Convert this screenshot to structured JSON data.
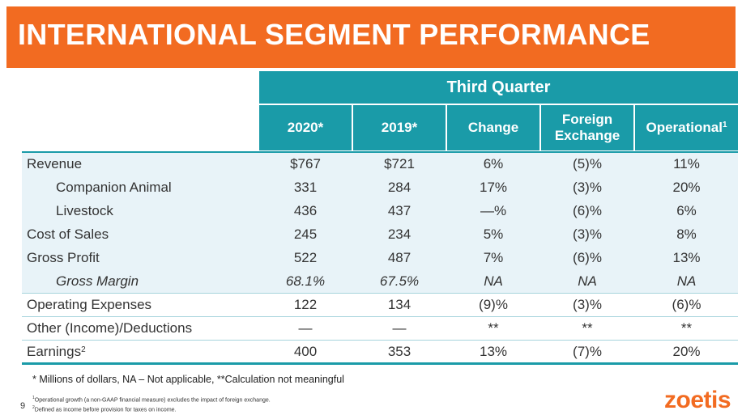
{
  "title": "INTERNATIONAL SEGMENT PERFORMANCE",
  "table": {
    "group_header": "Third Quarter",
    "columns": [
      {
        "label": "2020*",
        "sup": ""
      },
      {
        "label": "2019*",
        "sup": ""
      },
      {
        "label": "Change",
        "sup": ""
      },
      {
        "label": "Foreign Exchange",
        "sup": ""
      },
      {
        "label": "Operational",
        "sup": "1"
      }
    ],
    "rows": [
      {
        "label": "Revenue",
        "sup": "",
        "indent": false,
        "italic": false,
        "shaded": true,
        "values": [
          "$767",
          "$721",
          "6%",
          "(5)%",
          "11%"
        ]
      },
      {
        "label": "Companion Animal",
        "sup": "",
        "indent": true,
        "italic": false,
        "shaded": true,
        "values": [
          "331",
          "284",
          "17%",
          "(3)%",
          "20%"
        ]
      },
      {
        "label": "Livestock",
        "sup": "",
        "indent": true,
        "italic": false,
        "shaded": true,
        "values": [
          "436",
          "437",
          "—%",
          "(6)%",
          "6%"
        ]
      },
      {
        "label": "Cost of Sales",
        "sup": "",
        "indent": false,
        "italic": false,
        "shaded": true,
        "values": [
          "245",
          "234",
          "5%",
          "(3)%",
          "8%"
        ]
      },
      {
        "label": "Gross Profit",
        "sup": "",
        "indent": false,
        "italic": false,
        "shaded": true,
        "values": [
          "522",
          "487",
          "7%",
          "(6)%",
          "13%"
        ]
      },
      {
        "label": "Gross Margin",
        "sup": "",
        "indent": true,
        "italic": true,
        "shaded": true,
        "values": [
          "68.1%",
          "67.5%",
          "NA",
          "NA",
          "NA"
        ]
      },
      {
        "label": "Operating Expenses",
        "sup": "",
        "indent": false,
        "italic": false,
        "shaded": false,
        "values": [
          "122",
          "134",
          "(9)%",
          "(3)%",
          "(6)%"
        ]
      },
      {
        "label": "Other (Income)/Deductions",
        "sup": "",
        "indent": false,
        "italic": false,
        "shaded": false,
        "values": [
          "—",
          "—",
          "**",
          "**",
          "**"
        ]
      },
      {
        "label": "Earnings",
        "sup": "2",
        "indent": false,
        "italic": false,
        "shaded": false,
        "values": [
          "400",
          "353",
          "13%",
          "(7)%",
          "20%"
        ]
      }
    ]
  },
  "note": "* Millions of dollars, NA – Not applicable, **Calculation not meaningful",
  "footnotes": [
    {
      "sup": "1",
      "text": "Operational growth (a non-GAAP financial measure) excludes the impact of foreign exchange."
    },
    {
      "sup": "2",
      "text": "Defined as income before provision for taxes on income."
    }
  ],
  "page_number": "9",
  "logo_text": "zoetis",
  "colors": {
    "banner": "#f26b21",
    "header": "#1a9ba8",
    "shaded_row": "#e8f3f8",
    "logo": "#f26b21"
  }
}
